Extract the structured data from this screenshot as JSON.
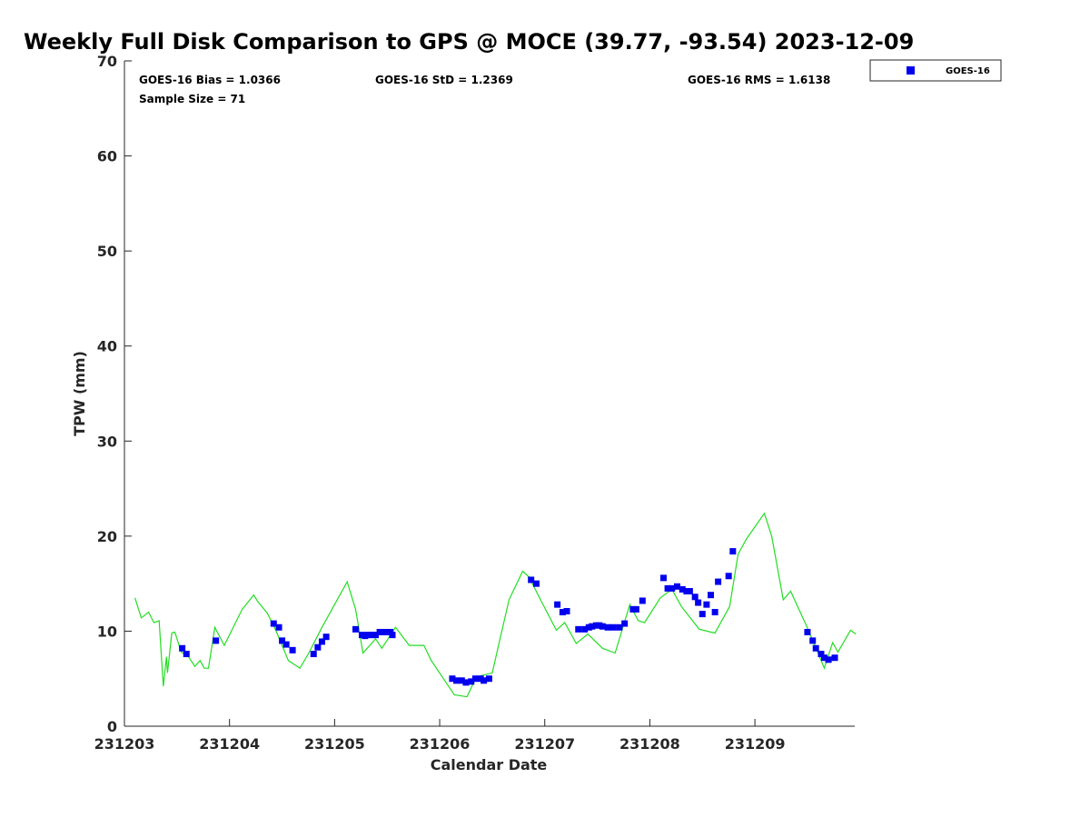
{
  "chart_data": {
    "type": "line+scatter",
    "title": "Weekly Full Disk Comparison to GPS @ MOCE (39.77, -93.54) 2023-12-09",
    "xlabel": "Calendar Date",
    "ylabel": "TPW (mm)",
    "xlim": [
      0,
      6.95
    ],
    "ylim": [
      0,
      70
    ],
    "x_units": "days since 231203",
    "x_ticks": [
      0,
      1,
      2,
      3,
      4,
      5,
      6
    ],
    "x_tick_labels": [
      "231203",
      "231204",
      "231205",
      "231206",
      "231207",
      "231208",
      "231209"
    ],
    "y_ticks": [
      0,
      10,
      20,
      30,
      40,
      50,
      60,
      70
    ],
    "y_tick_labels": [
      "0",
      "10",
      "20",
      "30",
      "40",
      "50",
      "60",
      "70"
    ],
    "grid": false,
    "legend": {
      "placement": "outside-top-right",
      "entries": [
        "GOES-16"
      ]
    },
    "annotations": {
      "bias": "GOES-16 Bias = 1.0366",
      "std": "GOES-16 StD = 1.2369",
      "rms": "GOES-16 RMS = 1.6138",
      "sample": "Sample Size = 71"
    },
    "colors": {
      "goes": "#0000ee",
      "gps": "#22dd22"
    },
    "series": [
      {
        "name": "GPS",
        "kind": "line",
        "x": [
          0.1,
          0.16,
          0.23,
          0.28,
          0.33,
          0.37,
          0.4,
          0.41,
          0.45,
          0.48,
          0.54,
          0.61,
          0.67,
          0.72,
          0.76,
          0.8,
          0.86,
          0.95,
          1.12,
          1.23,
          1.27,
          1.36,
          1.44,
          1.56,
          1.67,
          1.75,
          1.88,
          2.12,
          2.2,
          2.27,
          2.39,
          2.45,
          2.58,
          2.71,
          2.85,
          2.92,
          3.14,
          3.26,
          3.35,
          3.5,
          3.66,
          3.79,
          3.85,
          3.96,
          4.11,
          4.19,
          4.3,
          4.41,
          4.55,
          4.67,
          4.81,
          4.89,
          4.95,
          5.1,
          5.21,
          5.3,
          5.47,
          5.62,
          5.76,
          5.84,
          5.92,
          6.09,
          6.16,
          6.27,
          6.34,
          6.51,
          6.66,
          6.74,
          6.79,
          6.91,
          6.96
        ],
        "y": [
          13.5,
          11.4,
          12.0,
          10.9,
          11.1,
          4.2,
          7.3,
          5.6,
          9.8,
          9.9,
          7.8,
          7.3,
          6.3,
          6.9,
          6.1,
          6.1,
          10.4,
          8.5,
          12.3,
          13.8,
          13.1,
          11.9,
          10.1,
          6.9,
          6.1,
          7.6,
          10.4,
          15.2,
          12.3,
          7.7,
          9.2,
          8.2,
          10.4,
          8.5,
          8.5,
          6.9,
          3.3,
          3.1,
          5.2,
          5.6,
          13.3,
          16.3,
          15.7,
          13.3,
          10.1,
          10.9,
          8.7,
          9.7,
          8.2,
          7.7,
          12.8,
          11.1,
          10.9,
          13.5,
          14.4,
          12.6,
          10.2,
          9.8,
          12.6,
          18.1,
          19.7,
          22.4,
          20.0,
          13.3,
          14.2,
          10.1,
          6.1,
          8.8,
          7.8,
          10.1,
          9.7
        ]
      },
      {
        "name": "GOES-16",
        "kind": "scatter",
        "x": [
          0.55,
          0.59,
          0.87,
          1.42,
          1.47,
          1.5,
          1.54,
          1.6,
          1.8,
          1.84,
          1.88,
          1.92,
          2.2,
          2.26,
          2.29,
          2.32,
          2.36,
          2.39,
          2.43,
          2.46,
          2.5,
          2.53,
          2.55,
          3.12,
          3.16,
          3.21,
          3.25,
          3.3,
          3.34,
          3.39,
          3.42,
          3.47,
          3.87,
          3.92,
          4.12,
          4.17,
          4.21,
          4.32,
          4.38,
          4.42,
          4.45,
          4.49,
          4.52,
          4.55,
          4.6,
          4.65,
          4.71,
          4.76,
          4.84,
          4.87,
          4.93,
          5.13,
          5.17,
          5.21,
          5.26,
          5.31,
          5.35,
          5.38,
          5.43,
          5.46,
          5.5,
          5.54,
          5.58,
          5.62,
          5.65,
          5.75,
          5.79,
          6.5,
          6.55,
          6.58,
          6.63,
          6.66,
          6.7,
          6.76
        ],
        "y": [
          8.2,
          7.6,
          9.0,
          10.8,
          10.4,
          9.0,
          8.6,
          8.0,
          7.6,
          8.3,
          8.9,
          9.4,
          10.2,
          9.6,
          9.5,
          9.6,
          9.6,
          9.6,
          9.9,
          9.9,
          9.9,
          9.9,
          9.6,
          5.0,
          4.8,
          4.8,
          4.6,
          4.7,
          5.0,
          5.0,
          4.8,
          5.0,
          15.4,
          15.0,
          12.8,
          12.0,
          12.1,
          10.2,
          10.2,
          10.4,
          10.5,
          10.6,
          10.6,
          10.5,
          10.4,
          10.4,
          10.4,
          10.8,
          12.3,
          12.3,
          13.2,
          15.6,
          14.5,
          14.5,
          14.7,
          14.4,
          14.2,
          14.2,
          13.6,
          13.0,
          11.8,
          12.8,
          13.8,
          12.0,
          15.2,
          15.8,
          18.4,
          9.9,
          9.0,
          8.2,
          7.6,
          7.2,
          7.0,
          7.2
        ]
      }
    ]
  }
}
